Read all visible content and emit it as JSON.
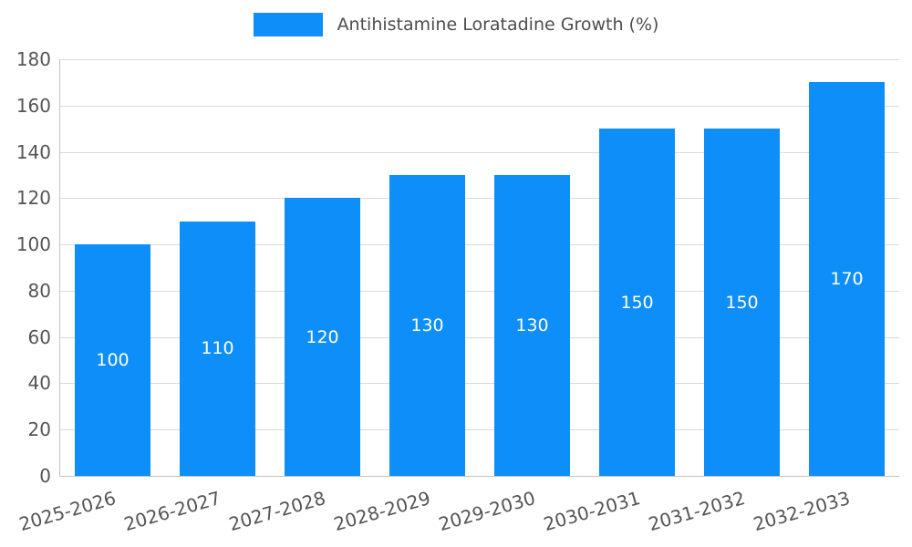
{
  "chart_data": {
    "type": "bar",
    "title": "Antihistamine Loratadine Growth (%)",
    "categories": [
      "2025-2026",
      "2026-2027",
      "2027-2028",
      "2028-2029",
      "2029-2030",
      "2030-2031",
      "2031-2032",
      "2032-2033"
    ],
    "values": [
      100,
      110,
      120,
      130,
      130,
      150,
      150,
      170
    ],
    "xlabel": "",
    "ylabel": "",
    "ylim": [
      0,
      180
    ],
    "yticks": [
      0,
      20,
      40,
      60,
      80,
      100,
      120,
      140,
      160,
      180
    ],
    "grid": "horizontal",
    "legend_position": "top-center",
    "bar_labels_inside": true,
    "x_tick_rotation_deg": -16,
    "colors": {
      "bar": "#0d8ef8",
      "bar_label_text": "#ffffff",
      "grid": "#d9d9d9",
      "axis": "#c3c3c3",
      "tick_text": "#555555",
      "legend_text": "#4d4d4d"
    }
  }
}
